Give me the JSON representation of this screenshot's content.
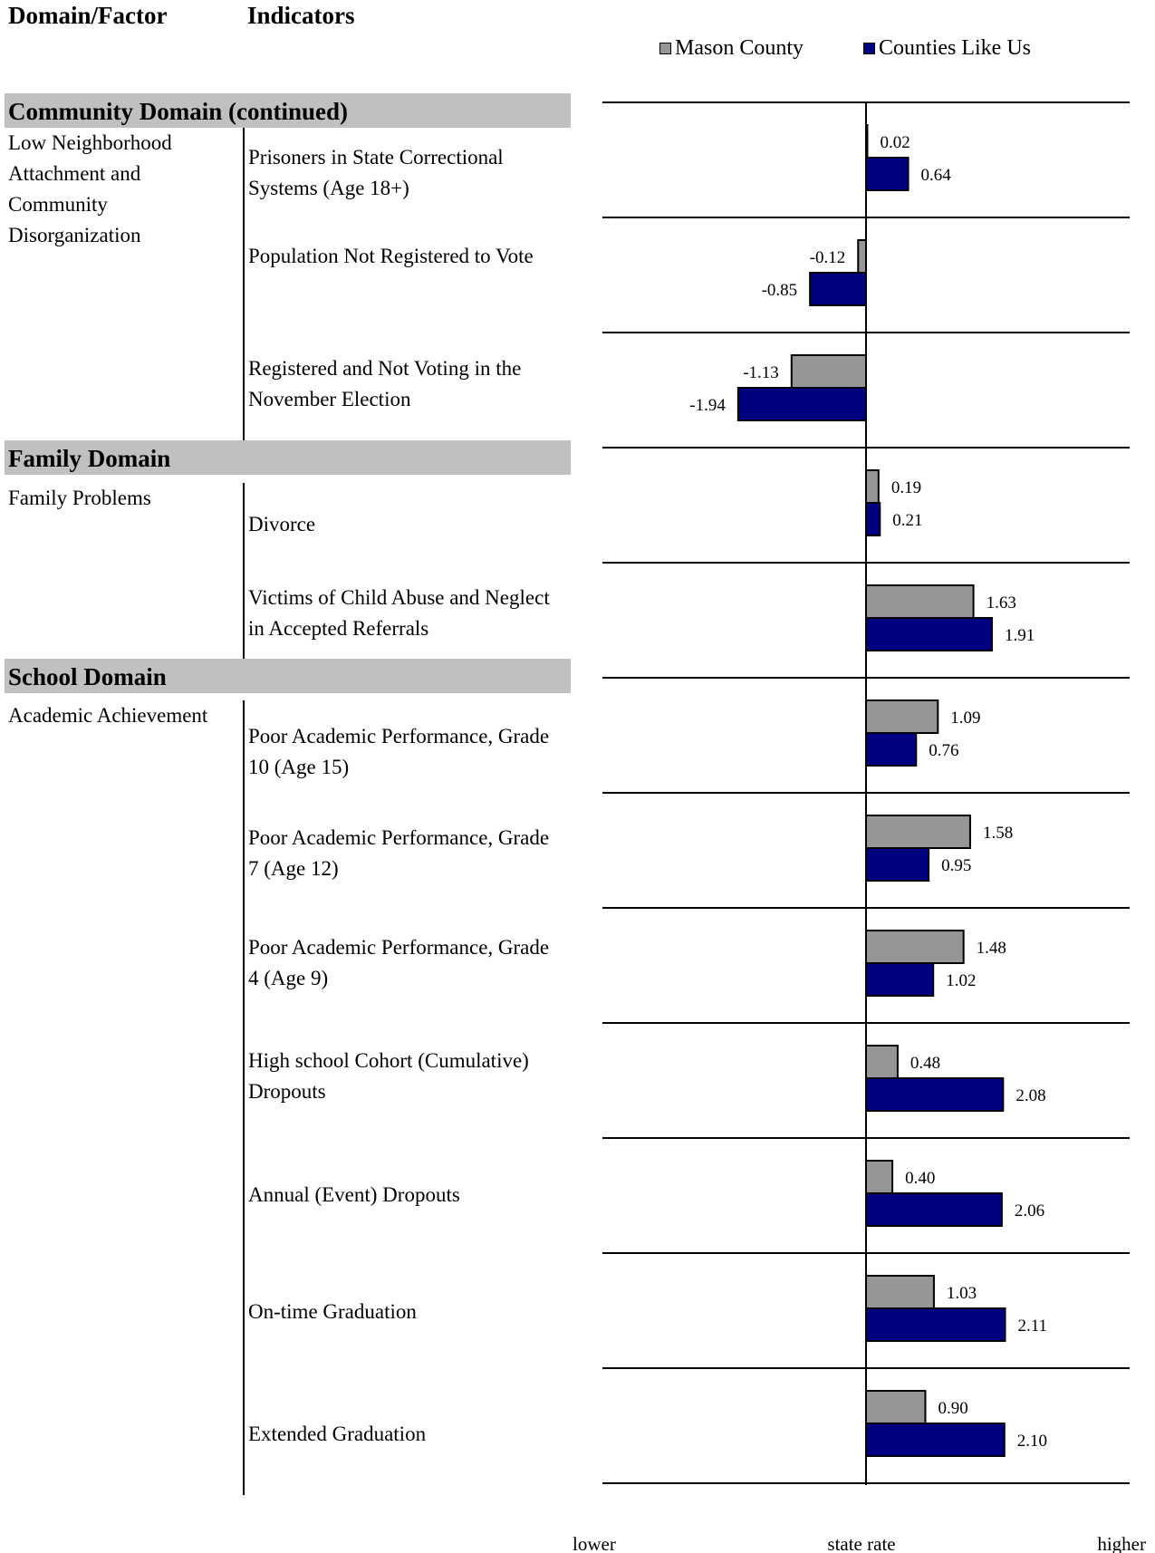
{
  "headers": {
    "domain_factor": "Domain/Factor",
    "indicators": "Indicators"
  },
  "legend": [
    {
      "name": "Mason County",
      "color": "#969696"
    },
    {
      "name": "Counties Like Us",
      "color": "#000080"
    }
  ],
  "sections": [
    {
      "title": "Community Domain (continued)"
    },
    {
      "title": "Family Domain"
    },
    {
      "title": "School Domain"
    }
  ],
  "factors": [
    "Low Neighborhood Attachment and Community Disorganization",
    "Family Problems",
    "Academic Achievement"
  ],
  "indicators": [
    "Prisoners in State Correctional Systems (Age 18+)",
    "Population Not Registered to Vote",
    "Registered and Not Voting in the November Election",
    "Divorce",
    "Victims of Child Abuse and Neglect in Accepted Referrals",
    "Poor Academic Performance, Grade 10 (Age 15)",
    "Poor Academic Performance, Grade 7 (Age 12)",
    "Poor Academic Performance, Grade 4 (Age 9)",
    "High school Cohort (Cumulative) Dropouts",
    "Annual (Event) Dropouts",
    "On-time Graduation",
    "Extended Graduation"
  ],
  "chart_data": {
    "type": "bar",
    "orientation": "horizontal",
    "categories": [
      "Prisoners in State Correctional Systems (Age 18+)",
      "Population Not Registered to Vote",
      "Registered and Not Voting in the November Election",
      "Divorce",
      "Victims of Child Abuse and Neglect in Accepted Referrals",
      "Poor Academic Performance, Grade 10 (Age 15)",
      "Poor Academic Performance, Grade 7 (Age 12)",
      "Poor Academic Performance, Grade 4 (Age 9)",
      "High school Cohort (Cumulative) Dropouts",
      "Annual (Event) Dropouts",
      "On-time Graduation",
      "Extended Graduation"
    ],
    "series": [
      {
        "name": "Mason County",
        "color": "#969696",
        "values": [
          0.02,
          -0.12,
          -1.13,
          0.19,
          1.63,
          1.09,
          1.58,
          1.48,
          0.48,
          0.4,
          1.03,
          0.9
        ],
        "labels": [
          "0.02",
          "-0.12",
          "-1.13",
          "0.19",
          "1.63",
          "1.09",
          "1.58",
          "1.48",
          "0.48",
          "0.40",
          "1.03",
          "0.90"
        ]
      },
      {
        "name": "Counties Like Us",
        "color": "#000080",
        "values": [
          0.64,
          -0.85,
          -1.94,
          0.21,
          1.91,
          0.76,
          0.95,
          1.02,
          2.08,
          2.06,
          2.11,
          2.1
        ],
        "labels": [
          "0.64",
          "-0.85",
          "-1.94",
          "0.21",
          "1.91",
          "0.76",
          "0.95",
          "1.02",
          "2.08",
          "2.06",
          "2.11",
          "2.10"
        ]
      }
    ],
    "xlim": [
      -4,
      4
    ],
    "scale_labels": {
      "lower": "lower",
      "center": "state rate",
      "higher": "higher"
    },
    "grid": "horizontal separators between categories",
    "legend_position": "top-right"
  }
}
